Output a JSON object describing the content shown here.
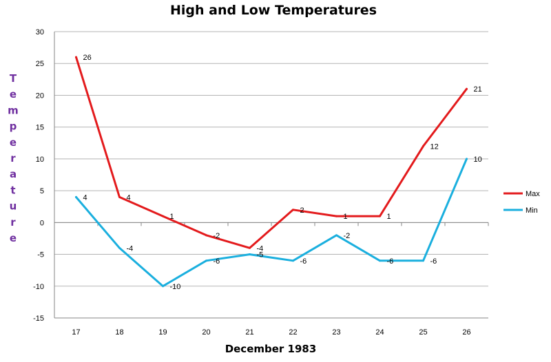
{
  "chart_data": {
    "type": "line",
    "title": "High and Low Temperatures",
    "xlabel": "December 1983",
    "ylabel": "Temperature",
    "categories": [
      "17",
      "18",
      "19",
      "20",
      "21",
      "22",
      "23",
      "24",
      "25",
      "26"
    ],
    "series": [
      {
        "name": "Max",
        "color": "#e31a1c",
        "values": [
          26,
          4,
          1,
          -2,
          -4,
          2,
          1,
          1,
          12,
          21
        ]
      },
      {
        "name": "Min",
        "color": "#1aafde",
        "values": [
          4,
          -4,
          -10,
          -6,
          -5,
          -6,
          -2,
          -6,
          -6,
          10
        ]
      }
    ],
    "ylim": [
      -15,
      30
    ],
    "yticks": [
      30,
      25,
      20,
      15,
      10,
      5,
      0,
      -5,
      -10,
      -15
    ],
    "grid": true,
    "legend": "right",
    "data_labels": true
  }
}
